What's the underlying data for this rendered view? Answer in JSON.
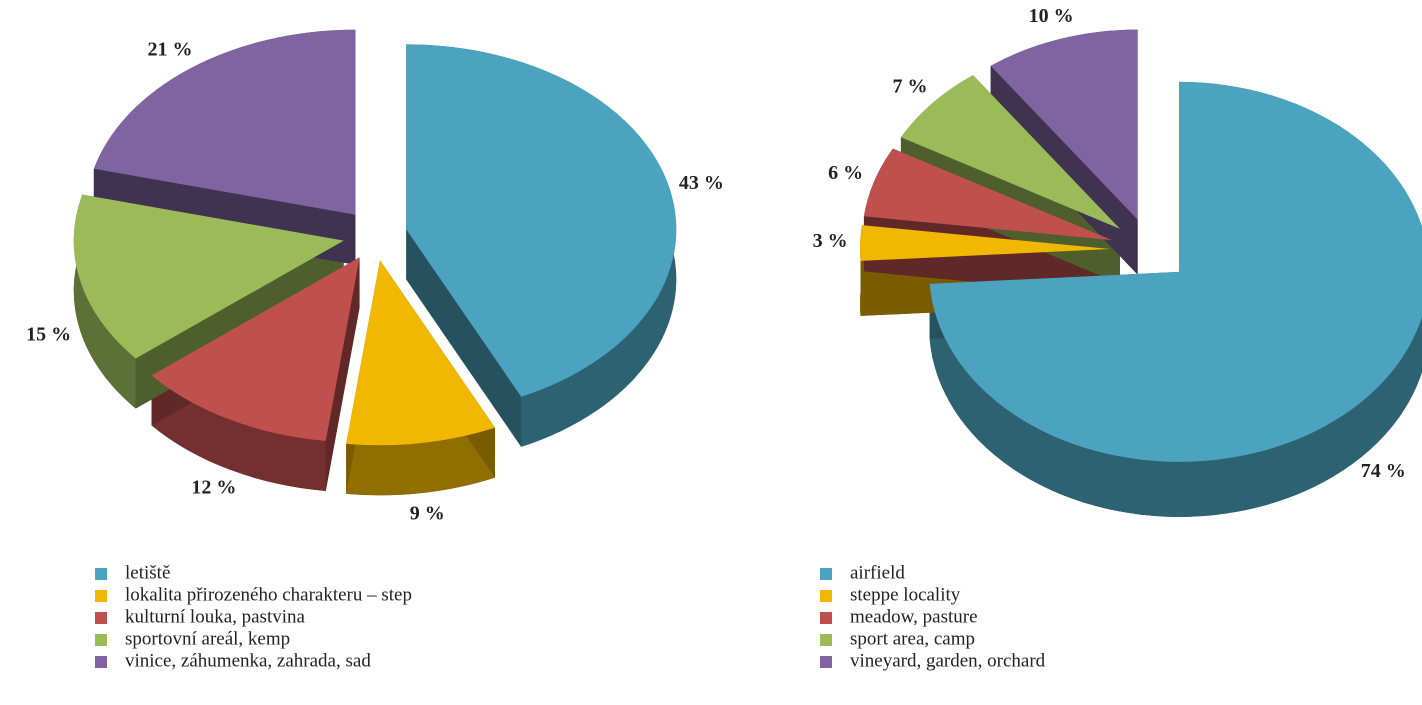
{
  "chart_data": [
    {
      "type": "pie",
      "categories": [
        "letiště",
        "lokalita přirozeného charakteru – step",
        "kulturní louka, pastvina",
        "sportovní areál, kemp",
        "vinice, záhumenka, zahrada, sad"
      ],
      "values": [
        43,
        9,
        12,
        15,
        21
      ],
      "value_labels": [
        "43 %",
        "9 %",
        "12 %",
        "15 %",
        "21 %"
      ],
      "colors": [
        "#4ba3bf",
        "#f2b700",
        "#c0504d",
        "#9bbb59",
        "#8064a2"
      ]
    },
    {
      "type": "pie",
      "categories": [
        "airfield",
        "steppe locality",
        "meadow, pasture",
        "sport area, camp",
        "vineyard, garden, orchard"
      ],
      "values": [
        74,
        3,
        6,
        7,
        10
      ],
      "value_labels": [
        "74 %",
        "3 %",
        "6 %",
        "7 %",
        "10 %"
      ],
      "colors": [
        "#4ba3bf",
        "#f2b700",
        "#c0504d",
        "#9bbb59",
        "#8064a2"
      ]
    }
  ]
}
